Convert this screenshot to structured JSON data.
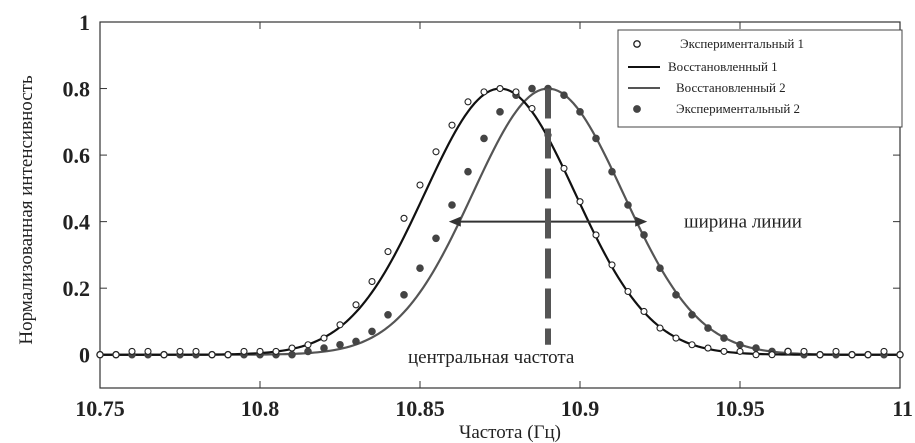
{
  "chart_data": {
    "type": "line",
    "xlabel": "Частота (Гц)",
    "ylabel": "Нормализованная интенсивность",
    "xlim": [
      10.75,
      11
    ],
    "ylim": [
      -0.1,
      1
    ],
    "x_ticks": [
      "10.75",
      "10.8",
      "10.85",
      "10.9",
      "10.95",
      "11"
    ],
    "y_ticks": [
      "0",
      "0.2",
      "0.4",
      "0.6",
      "0.8",
      "1"
    ],
    "x_tick_values": [
      10.75,
      10.8,
      10.85,
      10.9,
      10.95,
      11
    ],
    "y_tick_values": [
      0,
      0.2,
      0.4,
      0.6,
      0.8,
      1
    ],
    "grid": false,
    "legend_position": "top-right",
    "series": [
      {
        "name": "Экспериментальный 1",
        "kind": "markers",
        "marker": "open-circle",
        "color": "#222222",
        "x": [
          10.75,
          10.755,
          10.76,
          10.765,
          10.77,
          10.775,
          10.78,
          10.785,
          10.79,
          10.795,
          10.8,
          10.805,
          10.81,
          10.815,
          10.82,
          10.825,
          10.83,
          10.835,
          10.84,
          10.845,
          10.85,
          10.855,
          10.86,
          10.865,
          10.87,
          10.875,
          10.88,
          10.885,
          10.89,
          10.895,
          10.9,
          10.905,
          10.91,
          10.915,
          10.92,
          10.925,
          10.93,
          10.935,
          10.94,
          10.945,
          10.95,
          10.955,
          10.96,
          10.965,
          10.97,
          10.975,
          10.98,
          10.985,
          10.99,
          10.995,
          11
        ],
        "y": [
          0,
          0,
          0.01,
          0.01,
          0,
          0.01,
          0.01,
          0,
          0,
          0.01,
          0.01,
          0.01,
          0.02,
          0.03,
          0.05,
          0.09,
          0.15,
          0.22,
          0.31,
          0.41,
          0.51,
          0.61,
          0.69,
          0.76,
          0.79,
          0.8,
          0.79,
          0.74,
          0.66,
          0.56,
          0.46,
          0.36,
          0.27,
          0.19,
          0.13,
          0.08,
          0.05,
          0.03,
          0.02,
          0.01,
          0.01,
          0,
          0,
          0.01,
          0.01,
          0,
          0.01,
          0,
          0,
          0.01,
          0
        ]
      },
      {
        "name": "Восстановленный 1",
        "kind": "line",
        "color": "#111111",
        "center": 10.875,
        "peak": 0.8,
        "sigma": 0.0235
      },
      {
        "name": "Восстановленный 2",
        "kind": "line",
        "color": "#555555",
        "center": 10.89,
        "peak": 0.8,
        "sigma": 0.0235
      },
      {
        "name": "Экспериментальный 2",
        "kind": "markers",
        "marker": "filled-circle",
        "color": "#555555",
        "x": [
          10.75,
          10.755,
          10.76,
          10.765,
          10.77,
          10.775,
          10.78,
          10.785,
          10.79,
          10.795,
          10.8,
          10.805,
          10.81,
          10.815,
          10.82,
          10.825,
          10.83,
          10.835,
          10.84,
          10.845,
          10.85,
          10.855,
          10.86,
          10.865,
          10.87,
          10.875,
          10.88,
          10.885,
          10.89,
          10.895,
          10.9,
          10.905,
          10.91,
          10.915,
          10.92,
          10.925,
          10.93,
          10.935,
          10.94,
          10.945,
          10.95,
          10.955,
          10.96,
          10.965,
          10.97,
          10.975,
          10.98,
          10.985,
          10.99,
          10.995,
          11
        ],
        "y": [
          0,
          0,
          0,
          0,
          0,
          0,
          0,
          0,
          0,
          0,
          0,
          0,
          0,
          0.01,
          0.02,
          0.03,
          0.04,
          0.07,
          0.12,
          0.18,
          0.26,
          0.35,
          0.45,
          0.55,
          0.65,
          0.73,
          0.78,
          0.8,
          0.8,
          0.78,
          0.73,
          0.65,
          0.55,
          0.45,
          0.36,
          0.26,
          0.18,
          0.12,
          0.08,
          0.05,
          0.03,
          0.02,
          0.01,
          0.01,
          0,
          0,
          0,
          0,
          0,
          0,
          0
        ]
      }
    ],
    "annotations": {
      "linewidth_label": "ширина линии",
      "linewidth_arrow_x": [
        10.859,
        10.921
      ],
      "linewidth_arrow_y": 0.4,
      "center_label": "центральная частота",
      "center_line_x": 10.89,
      "center_line_y": [
        0,
        0.8
      ]
    }
  }
}
